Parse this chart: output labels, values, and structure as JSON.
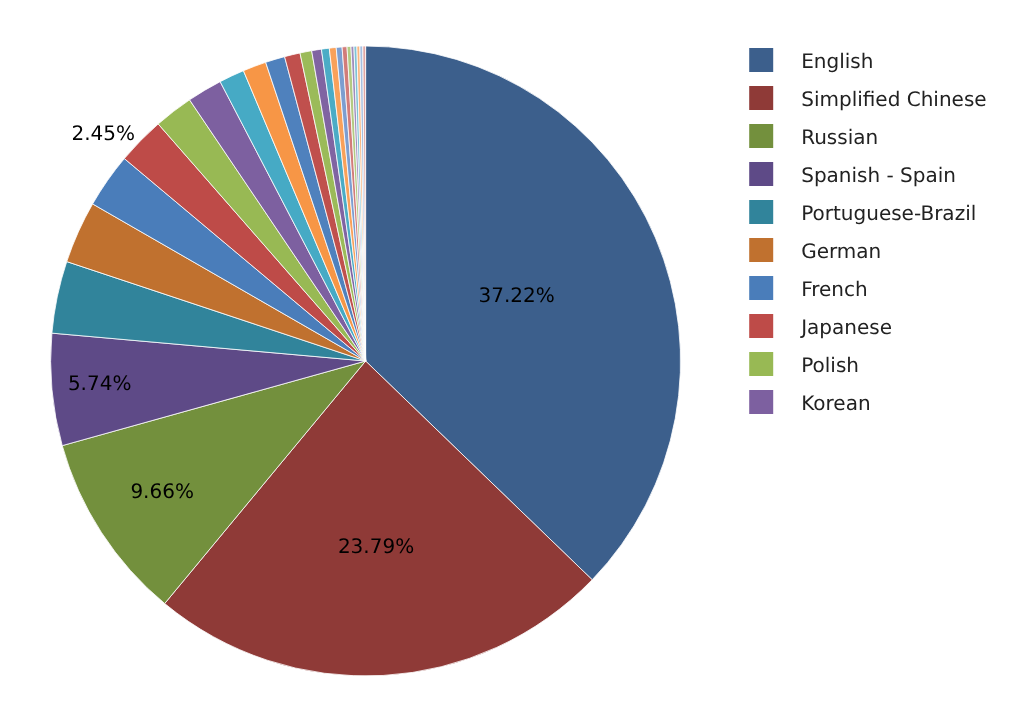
{
  "chart_data": {
    "type": "pie",
    "categories": [
      "English",
      "Simplified Chinese",
      "Russian",
      "Spanish - Spain",
      "Portuguese-Brazil",
      "German",
      "French",
      "Japanese",
      "Polish",
      "Korean",
      null,
      null,
      null,
      null,
      null,
      null,
      null,
      null,
      null,
      null,
      null,
      null,
      null,
      null,
      null,
      null
    ],
    "values": [
      37.22,
      23.79,
      9.66,
      5.74,
      3.7,
      3.2,
      2.8,
      2.45,
      2.0,
      1.8,
      1.3,
      1.2,
      1.0,
      0.8,
      0.6,
      0.5,
      0.4,
      0.35,
      0.3,
      0.25,
      0.2,
      0.15,
      0.15,
      0.15,
      0.15,
      0.14
    ],
    "colors": [
      "#3c5f8c",
      "#8f3a37",
      "#73903d",
      "#5e4a87",
      "#31849b",
      "#c0712f",
      "#4a7dba",
      "#be4b48",
      "#98b954",
      "#7d60a0",
      "#46aac5",
      "#f79646",
      "#4f81bd",
      "#c0504d",
      "#9bbb59",
      "#8064a2",
      "#4bacc6",
      "#f9a15a",
      "#7c9ed0",
      "#d27c7a",
      "#b3ca82",
      "#a08cbc",
      "#7fc3d6",
      "#fbb680",
      "#a7bfe0",
      "#e0a6a4"
    ],
    "value_labels": [
      "37.22%",
      "23.79%",
      "9.66%",
      "5.74%",
      null,
      null,
      null,
      "2.45%",
      null,
      null,
      null,
      null,
      null,
      null,
      null,
      null,
      null,
      null,
      null,
      null,
      null,
      null,
      null,
      null,
      null,
      null
    ],
    "legend": "right"
  }
}
